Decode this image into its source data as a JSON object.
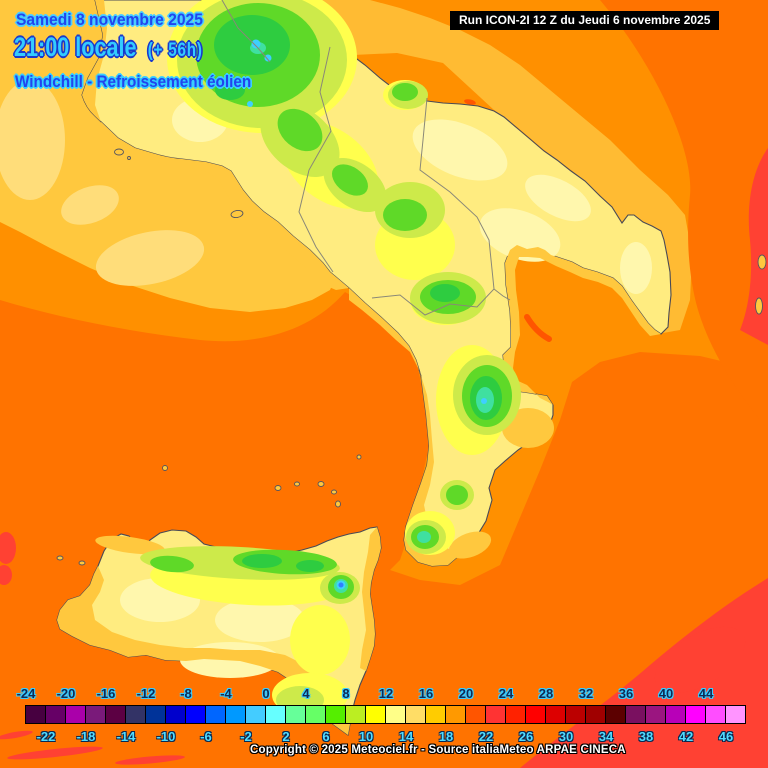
{
  "header": {
    "date_line": "Samedi 8 novembre 2025",
    "time_line": "21:00 locale",
    "offset": "(+ 56h)",
    "variable": "Windchill - Refroissement éolien",
    "text_blue": "#2244ee",
    "text_cyan": "#33ccff"
  },
  "run_box": {
    "text": "Run ICON-2I 12 Z du Jeudi 6 novembre 2025"
  },
  "copyright": {
    "text": "Copyright © 2025 Meteociel.fr - Source italiaMeteo ARPAE CINECA"
  },
  "legend": {
    "step_degrees": 2,
    "min": -24,
    "max": 48,
    "colors": [
      "#470040",
      "#660066",
      "#aa00aa",
      "#7a1a7a",
      "#5c0043",
      "#333366",
      "#003399",
      "#0000cc",
      "#0000ff",
      "#0066ff",
      "#0099ff",
      "#44ccff",
      "#66ffff",
      "#66ff99",
      "#66ff66",
      "#55ee00",
      "#bbee22",
      "#ffff00",
      "#ffff88",
      "#ffdd66",
      "#ffcc00",
      "#ff9900",
      "#ff5500",
      "#ff3333",
      "#ff2200",
      "#ff0000",
      "#dd0000",
      "#bb0000",
      "#a00000",
      "#5c0000",
      "#7a1060",
      "#9b1580",
      "#b800b8",
      "#ff00ff",
      "#ff4dff",
      "#ff94ff"
    ],
    "top_labels": [
      -24,
      -20,
      -16,
      -12,
      -8,
      -4,
      0,
      4,
      8,
      12,
      16,
      20,
      24,
      28,
      32,
      36,
      40,
      44
    ],
    "bottom_labels": [
      -22,
      -18,
      -14,
      -10,
      -6,
      -2,
      2,
      6,
      10,
      14,
      18,
      22,
      26,
      30,
      34,
      38,
      42,
      46
    ],
    "top_label_color": "#102a54",
    "bottom_label_color": "#4fdcff"
  },
  "map_colors": {
    "sea_warm_amber": "#ffc83e",
    "sea_orange": "#ff9000",
    "sea_deep_orange": "#ff7300",
    "sea_red": "#ff4133",
    "land_base": "#ffec80",
    "land_pale": "#fff7ad",
    "land_amber": "#ffc83e",
    "land_yellow": "#ffff4d",
    "veg_yellow_green": "#cdea4a",
    "veg_green": "#5fd928",
    "veg_bright_green": "#2ecc40",
    "cold_aqua": "#3fe0a0",
    "cold_cyan": "#3fcfff",
    "cold_blue": "#2f7fff",
    "coastline": "#4a4a55",
    "region_border": "#8a8878"
  }
}
